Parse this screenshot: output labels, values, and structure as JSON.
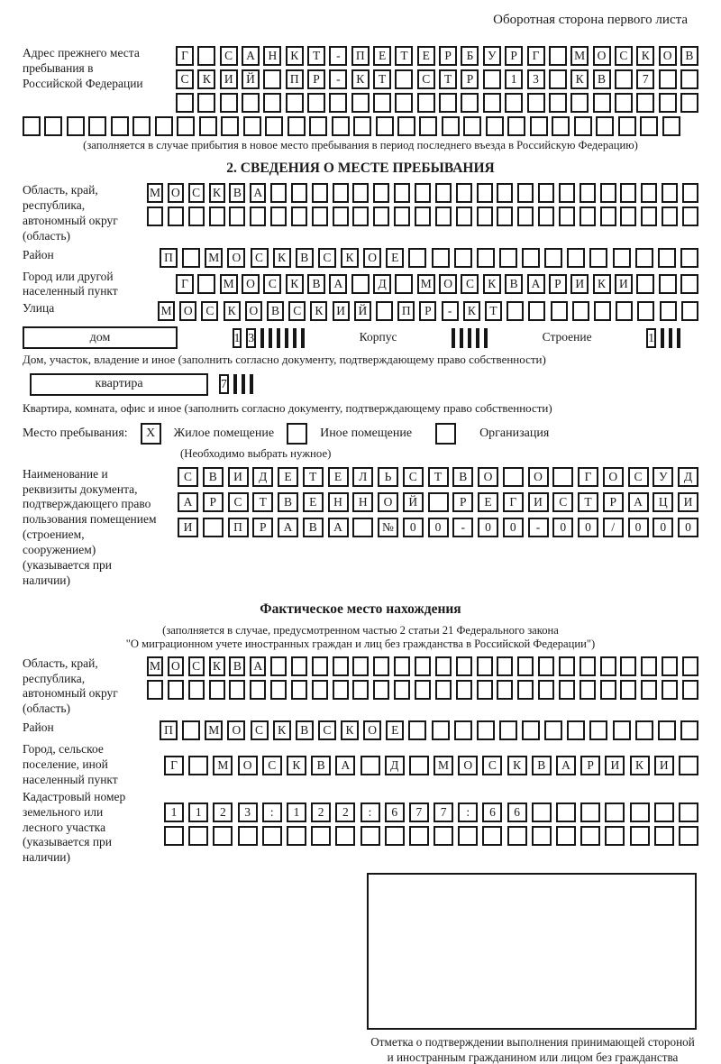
{
  "page_header": "Оборотная сторона первого листа",
  "prev_address": {
    "label": "Адрес прежнего места пребывания в Российской Федерации",
    "note": "(заполняется в случае прибытия в новое место пребывания в период последнего въезда в Российскую Федерацию)",
    "row1": [
      "Г",
      "",
      "С",
      "А",
      "Н",
      "К",
      "Т",
      "-",
      "П",
      "Е",
      "Т",
      "Е",
      "Р",
      "Б",
      "У",
      "Р",
      "Г",
      "",
      "М",
      "О",
      "С",
      "К",
      "О",
      "В"
    ],
    "row2": [
      "С",
      "К",
      "И",
      "Й",
      "",
      "П",
      "Р",
      "-",
      "К",
      "Т",
      "",
      "С",
      "Т",
      "Р",
      "",
      "1",
      "3",
      "",
      "К",
      "В",
      "",
      "7",
      "",
      ""
    ],
    "row3": [
      "",
      "",
      "",
      "",
      "",
      "",
      "",
      "",
      "",
      "",
      "",
      "",
      "",
      "",
      "",
      "",
      "",
      "",
      "",
      "",
      "",
      "",
      "",
      ""
    ],
    "row4": [
      "",
      "",
      "",
      "",
      "",
      "",
      "",
      "",
      "",
      "",
      "",
      "",
      "",
      "",
      "",
      "",
      "",
      "",
      "",
      "",
      "",
      "",
      "",
      "",
      "",
      "",
      "",
      "",
      "",
      ""
    ]
  },
  "section2": {
    "title": "2. СВЕДЕНИЯ О МЕСТЕ ПРЕБЫВАНИЯ"
  },
  "region": {
    "label": "Область, край, республика, автономный округ (область)",
    "row1": [
      "М",
      "О",
      "С",
      "К",
      "В",
      "А",
      "",
      "",
      "",
      "",
      "",
      "",
      "",
      "",
      "",
      "",
      "",
      "",
      "",
      "",
      "",
      "",
      "",
      "",
      "",
      "",
      ""
    ],
    "row2": [
      "",
      "",
      "",
      "",
      "",
      "",
      "",
      "",
      "",
      "",
      "",
      "",
      "",
      "",
      "",
      "",
      "",
      "",
      "",
      "",
      "",
      "",
      "",
      "",
      "",
      "",
      ""
    ]
  },
  "district": {
    "label": "Район",
    "row": [
      "П",
      "",
      "М",
      "О",
      "С",
      "К",
      "В",
      "С",
      "К",
      "О",
      "Е",
      "",
      "",
      "",
      "",
      "",
      "",
      "",
      "",
      "",
      "",
      "",
      "",
      ""
    ]
  },
  "city": {
    "label": "Город или другой населенный пункт",
    "row": [
      "Г",
      "",
      "М",
      "О",
      "С",
      "К",
      "В",
      "А",
      "",
      "Д",
      "",
      "М",
      "О",
      "С",
      "К",
      "В",
      "А",
      "Р",
      "И",
      "К",
      "И",
      "",
      "",
      ""
    ]
  },
  "street": {
    "label": "Улица",
    "row": [
      "М",
      "О",
      "С",
      "К",
      "О",
      "В",
      "С",
      "К",
      "И",
      "Й",
      "",
      "П",
      "Р",
      "-",
      "К",
      "Т",
      "",
      "",
      "",
      "",
      "",
      "",
      "",
      "",
      ""
    ]
  },
  "house": {
    "box_label": "дом",
    "cells": [
      "1",
      "3",
      "",
      "",
      "",
      "",
      "",
      ""
    ],
    "korpus_label": "Корпус",
    "korpus_cells": [
      "",
      "",
      "",
      "",
      ""
    ],
    "stroenie_label": "Строение",
    "stroenie_cells": [
      "1",
      "",
      "",
      ""
    ],
    "note": "Дом, участок, владение и иное (заполнить согласно документу, подтверждающему право собственности)"
  },
  "apartment": {
    "box_label": "квартира",
    "cells": [
      "7",
      "",
      "",
      ""
    ],
    "note": "Квартира, комната, офис и иное (заполнить согласно документу, подтверждающему право собственности)"
  },
  "stay_type": {
    "label": "Место пребывания:",
    "options": [
      {
        "label": "Жилое помещение",
        "mark": "X"
      },
      {
        "label": "Иное помещение",
        "mark": ""
      },
      {
        "label": "Организация",
        "mark": ""
      }
    ],
    "note": "(Необходимо выбрать нужное)"
  },
  "doc": {
    "label": "Наименование и реквизиты документа, подтверждающего право пользования помещением (строением, сооружением) (указывается при наличии)",
    "row1": [
      "С",
      "В",
      "И",
      "Д",
      "Е",
      "Т",
      "Е",
      "Л",
      "Ь",
      "С",
      "Т",
      "В",
      "О",
      "",
      "О",
      "",
      "Г",
      "О",
      "С",
      "У",
      "Д"
    ],
    "row2": [
      "А",
      "Р",
      "С",
      "Т",
      "В",
      "Е",
      "Н",
      "Н",
      "О",
      "Й",
      "",
      "Р",
      "Е",
      "Г",
      "И",
      "С",
      "Т",
      "Р",
      "А",
      "Ц",
      "И"
    ],
    "row3": [
      "И",
      "",
      "П",
      "Р",
      "А",
      "В",
      "А",
      "",
      "№",
      "0",
      "0",
      "-",
      "0",
      "0",
      "-",
      "0",
      "0",
      "/",
      "0",
      "0",
      "0"
    ]
  },
  "fact": {
    "title": "Фактическое место нахождения",
    "note1": "(заполняется в случае, предусмотренном частью 2 статьи 21 Федерального закона",
    "note2": "\"О миграционном учете иностранных граждан и лиц без гражданства в Российской Федерации\")"
  },
  "fact_region": {
    "label": "Область, край, республика, автономный округ (область)",
    "row1": [
      "М",
      "О",
      "С",
      "К",
      "В",
      "А",
      "",
      "",
      "",
      "",
      "",
      "",
      "",
      "",
      "",
      "",
      "",
      "",
      "",
      "",
      "",
      "",
      "",
      "",
      "",
      "",
      ""
    ],
    "row2": [
      "",
      "",
      "",
      "",
      "",
      "",
      "",
      "",
      "",
      "",
      "",
      "",
      "",
      "",
      "",
      "",
      "",
      "",
      "",
      "",
      "",
      "",
      "",
      "",
      "",
      "",
      ""
    ]
  },
  "fact_district": {
    "label": "Район",
    "row": [
      "П",
      "",
      "М",
      "О",
      "С",
      "К",
      "В",
      "С",
      "К",
      "О",
      "Е",
      "",
      "",
      "",
      "",
      "",
      "",
      "",
      "",
      "",
      "",
      "",
      "",
      ""
    ]
  },
  "fact_city": {
    "label": "Город, сельское поселение, иной населенный пункт",
    "row": [
      "Г",
      "",
      "М",
      "О",
      "С",
      "К",
      "В",
      "А",
      "",
      "Д",
      "",
      "М",
      "О",
      "С",
      "К",
      "В",
      "А",
      "Р",
      "И",
      "К",
      "И",
      ""
    ]
  },
  "cadastre": {
    "label": "Кадастровый номер земельного или лесного участка (указывается при наличии)",
    "row1": [
      "1",
      "1",
      "2",
      "3",
      ":",
      "1",
      "2",
      "2",
      ":",
      "6",
      "7",
      "7",
      ":",
      "6",
      "6",
      "",
      "",
      "",
      "",
      "",
      "",
      ""
    ],
    "row2": [
      "",
      "",
      "",
      "",
      "",
      "",
      "",
      "",
      "",
      "",
      "",
      "",
      "",
      "",
      "",
      "",
      "",
      "",
      "",
      "",
      "",
      ""
    ]
  },
  "stamp": {
    "caption": "Отметка о подтверждении выполнения принимающей стороной и иностранным гражданином или лицом без гражданства действий, необходимых для его постановки на учет по месту пребывания"
  }
}
